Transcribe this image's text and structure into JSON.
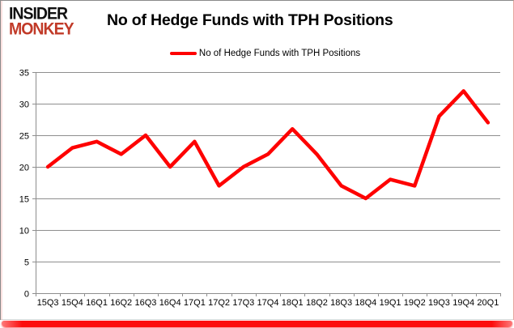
{
  "logo": {
    "line1": "INSIDER",
    "line2": "MONKEY"
  },
  "title": "No of Hedge Funds with TPH Positions",
  "legend": {
    "label": "No of Hedge Funds with TPH Positions"
  },
  "chart_data": {
    "type": "line",
    "title": "No of Hedge Funds with TPH Positions",
    "categories": [
      "15Q3",
      "15Q4",
      "16Q1",
      "16Q2",
      "16Q3",
      "16Q4",
      "17Q1",
      "17Q2",
      "17Q3",
      "17Q4",
      "18Q1",
      "18Q2",
      "18Q3",
      "18Q4",
      "19Q1",
      "19Q2",
      "19Q3",
      "19Q4",
      "20Q1"
    ],
    "series": [
      {
        "name": "No of Hedge Funds with TPH Positions",
        "color": "#fe0000",
        "values": [
          20,
          23,
          24,
          22,
          25,
          20,
          24,
          17,
          20,
          22,
          26,
          22,
          17,
          15,
          18,
          17,
          28,
          32,
          27
        ]
      }
    ],
    "xlabel": "",
    "ylabel": "",
    "ylim": [
      0,
      35
    ],
    "ytick_interval": 5,
    "grid": true,
    "legend_position": "top-center"
  },
  "colors": {
    "line": "#fe0000",
    "logo_red": "#c13a28",
    "logo_black": "#111111",
    "grid": "#8e8e8e",
    "axis": "#8e8e8e",
    "label_text": "#000000",
    "panel_border": "#8a8a8a",
    "bottom_bar": "#fc0d0d"
  }
}
